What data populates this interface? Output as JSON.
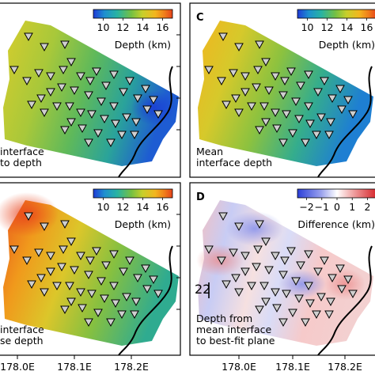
{
  "figure": {
    "panels": [
      {
        "id": "A",
        "letter": "",
        "caption": [
          "interface",
          "to depth"
        ],
        "colorbar": {
          "label": "Depth (km)",
          "ticks": [
            "10",
            "12",
            "14",
            "16"
          ],
          "range": [
            9,
            17
          ],
          "type": "depth"
        }
      },
      {
        "id": "C",
        "letter": "C",
        "caption": [
          "Mean",
          "interface depth"
        ],
        "colorbar": {
          "label": "Depth (km)",
          "ticks": [
            "10",
            "12",
            "14",
            "16"
          ],
          "range": [
            9,
            17
          ],
          "type": "depth"
        }
      },
      {
        "id": "B",
        "letter": "",
        "caption": [
          "interface",
          "se depth"
        ],
        "colorbar": {
          "label": "Depth (km)",
          "ticks": [
            "10",
            "12",
            "14",
            "16"
          ],
          "range": [
            9,
            17
          ],
          "type": "depth"
        }
      },
      {
        "id": "D",
        "letter": "D",
        "caption": [
          "Depth from",
          "mean interface",
          "to best-fit plane"
        ],
        "colorbar": {
          "label": "Difference (km)",
          "ticks": [
            "−2",
            "−1",
            "0",
            "1",
            "2"
          ],
          "range": [
            -2.6,
            2.6
          ],
          "type": "difference"
        },
        "inset_label": "22"
      }
    ],
    "x_ticks": [
      "178.0E",
      "178.1E",
      "178.2E"
    ]
  },
  "chart_data": {
    "type": "heatmap",
    "panels": [
      {
        "id": "A",
        "field": "depth",
        "range_km": [
          10,
          16
        ],
        "trend": "shallow (~12 km) in west, deepening to ~10-11 km... in east blue (~10 km)"
      },
      {
        "id": "C",
        "field": "depth",
        "range_km": [
          10,
          16
        ],
        "trend": "~14-15 km in west to ~10 km in east"
      },
      {
        "id": "B",
        "field": "depth",
        "range_km": [
          10,
          17
        ],
        "trend": "~16-17 km in northwest to ~12 km in east"
      },
      {
        "id": "D",
        "field": "difference",
        "range_km": [
          -2,
          2
        ],
        "trend": "mostly within ±1 km"
      }
    ],
    "x_ticks": [
      "178.0E",
      "178.1E",
      "178.2E"
    ],
    "depth_colorbar_ticks": [
      10,
      12,
      14,
      16
    ],
    "difference_colorbar_ticks": [
      -2,
      -1,
      0,
      1,
      2
    ]
  },
  "colors": {
    "depth_scale": [
      "#1f3bd6",
      "#1e8fd0",
      "#27b3a3",
      "#74c043",
      "#c7cf2b",
      "#f2b61e",
      "#f07d1a",
      "#e5421b"
    ],
    "difference_scale": [
      "#2b3fd8",
      "#9aa2ee",
      "#ffffff",
      "#f0a3a3",
      "#d6262b"
    ],
    "station_fill": "#cfcfcf"
  }
}
